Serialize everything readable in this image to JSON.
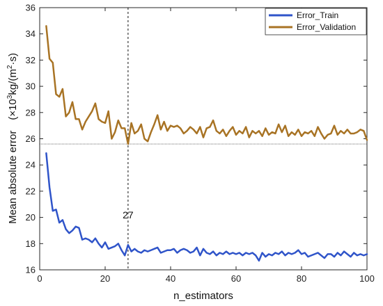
{
  "chart_data": {
    "type": "line",
    "xlabel": "n_estimators",
    "ylabel": "Mean absolute error　(×10",
    "ylabel_sup": "3",
    "ylabel_unit": "kg/(m",
    "ylabel_sup2": "2",
    "ylabel_end": "·s)",
    "xlim": [
      0,
      100
    ],
    "ylim": [
      16,
      36
    ],
    "xticks": [
      0,
      20,
      40,
      60,
      80,
      100
    ],
    "yticks": [
      16,
      18,
      20,
      22,
      24,
      26,
      28,
      30,
      32,
      34,
      36
    ],
    "grid": false,
    "legend_position": "top-right",
    "annotation": {
      "x": 27,
      "text": "27",
      "y": 20.2
    },
    "reference_line_y": 25.6,
    "colors": {
      "train": "#2f54c9",
      "validation": "#a87324"
    },
    "series": [
      {
        "name": "Error_Train",
        "x": [
          2,
          3,
          4,
          5,
          6,
          7,
          8,
          9,
          10,
          11,
          12,
          13,
          14,
          15,
          16,
          17,
          18,
          19,
          20,
          21,
          22,
          23,
          24,
          25,
          26,
          27,
          28,
          29,
          30,
          31,
          32,
          33,
          34,
          35,
          36,
          37,
          38,
          39,
          40,
          41,
          42,
          43,
          44,
          45,
          46,
          47,
          48,
          49,
          50,
          51,
          52,
          53,
          54,
          55,
          56,
          57,
          58,
          59,
          60,
          61,
          62,
          63,
          64,
          65,
          66,
          67,
          68,
          69,
          70,
          71,
          72,
          73,
          74,
          75,
          76,
          77,
          78,
          79,
          80,
          81,
          82,
          83,
          84,
          85,
          86,
          87,
          88,
          89,
          90,
          91,
          92,
          93,
          94,
          95,
          96,
          97,
          98,
          99,
          100
        ],
        "values": [
          24.9,
          22.3,
          20.5,
          20.6,
          19.6,
          19.8,
          19.1,
          18.8,
          19.0,
          19.3,
          19.2,
          18.3,
          18.4,
          18.3,
          18.1,
          18.4,
          18.0,
          17.7,
          18.1,
          17.6,
          17.7,
          17.8,
          18.0,
          17.5,
          17.1,
          17.9,
          17.4,
          17.6,
          17.4,
          17.3,
          17.5,
          17.4,
          17.5,
          17.6,
          17.7,
          17.3,
          17.4,
          17.5,
          17.5,
          17.6,
          17.3,
          17.5,
          17.6,
          17.5,
          17.3,
          17.4,
          17.7,
          17.1,
          17.6,
          17.3,
          17.2,
          17.4,
          17.1,
          17.3,
          17.2,
          17.4,
          17.2,
          17.3,
          17.2,
          17.3,
          17.1,
          17.3,
          17.2,
          17.3,
          17.1,
          16.7,
          17.3,
          17.0,
          17.2,
          17.1,
          17.3,
          17.2,
          17.4,
          17.1,
          17.3,
          17.2,
          17.3,
          17.5,
          17.2,
          17.3,
          17.0,
          17.1,
          17.2,
          17.3,
          17.1,
          16.9,
          17.2,
          17.2,
          17.0,
          17.3,
          17.1,
          17.4,
          17.2,
          17.0,
          17.3,
          17.1,
          17.2,
          17.1,
          17.2
        ]
      },
      {
        "name": "Error_Validation",
        "x": [
          2,
          3,
          4,
          5,
          6,
          7,
          8,
          9,
          10,
          11,
          12,
          13,
          14,
          15,
          16,
          17,
          18,
          19,
          20,
          21,
          22,
          23,
          24,
          25,
          26,
          27,
          28,
          29,
          30,
          31,
          32,
          33,
          34,
          35,
          36,
          37,
          38,
          39,
          40,
          41,
          42,
          43,
          44,
          45,
          46,
          47,
          48,
          49,
          50,
          51,
          52,
          53,
          54,
          55,
          56,
          57,
          58,
          59,
          60,
          61,
          62,
          63,
          64,
          65,
          66,
          67,
          68,
          69,
          70,
          71,
          72,
          73,
          74,
          75,
          76,
          77,
          78,
          79,
          80,
          81,
          82,
          83,
          84,
          85,
          86,
          87,
          88,
          89,
          90,
          91,
          92,
          93,
          94,
          95,
          96,
          97,
          98,
          99,
          100
        ],
        "values": [
          34.6,
          32.1,
          31.8,
          29.4,
          29.2,
          29.8,
          27.7,
          28.0,
          28.8,
          27.5,
          27.5,
          26.7,
          27.3,
          27.7,
          28.1,
          28.7,
          27.5,
          27.3,
          27.2,
          28.1,
          26.0,
          26.5,
          27.4,
          26.8,
          26.8,
          25.6,
          27.2,
          26.4,
          26.6,
          27.1,
          26.0,
          25.8,
          26.5,
          27.1,
          27.8,
          26.7,
          27.3,
          26.6,
          27.0,
          26.9,
          27.0,
          26.8,
          26.4,
          26.6,
          26.9,
          26.7,
          26.4,
          26.9,
          26.1,
          26.8,
          26.9,
          27.4,
          26.6,
          26.4,
          26.7,
          26.2,
          26.6,
          26.9,
          26.3,
          26.6,
          26.4,
          26.9,
          26.1,
          26.6,
          26.4,
          26.6,
          26.2,
          26.8,
          26.3,
          26.5,
          26.4,
          27.1,
          26.5,
          27.0,
          26.2,
          26.5,
          26.3,
          26.7,
          26.2,
          26.5,
          26.4,
          26.6,
          26.2,
          26.9,
          26.4,
          26.0,
          26.3,
          26.4,
          27.0,
          26.3,
          26.6,
          26.4,
          26.7,
          26.4,
          26.4,
          26.5,
          26.7,
          26.6,
          25.9
        ]
      }
    ]
  }
}
